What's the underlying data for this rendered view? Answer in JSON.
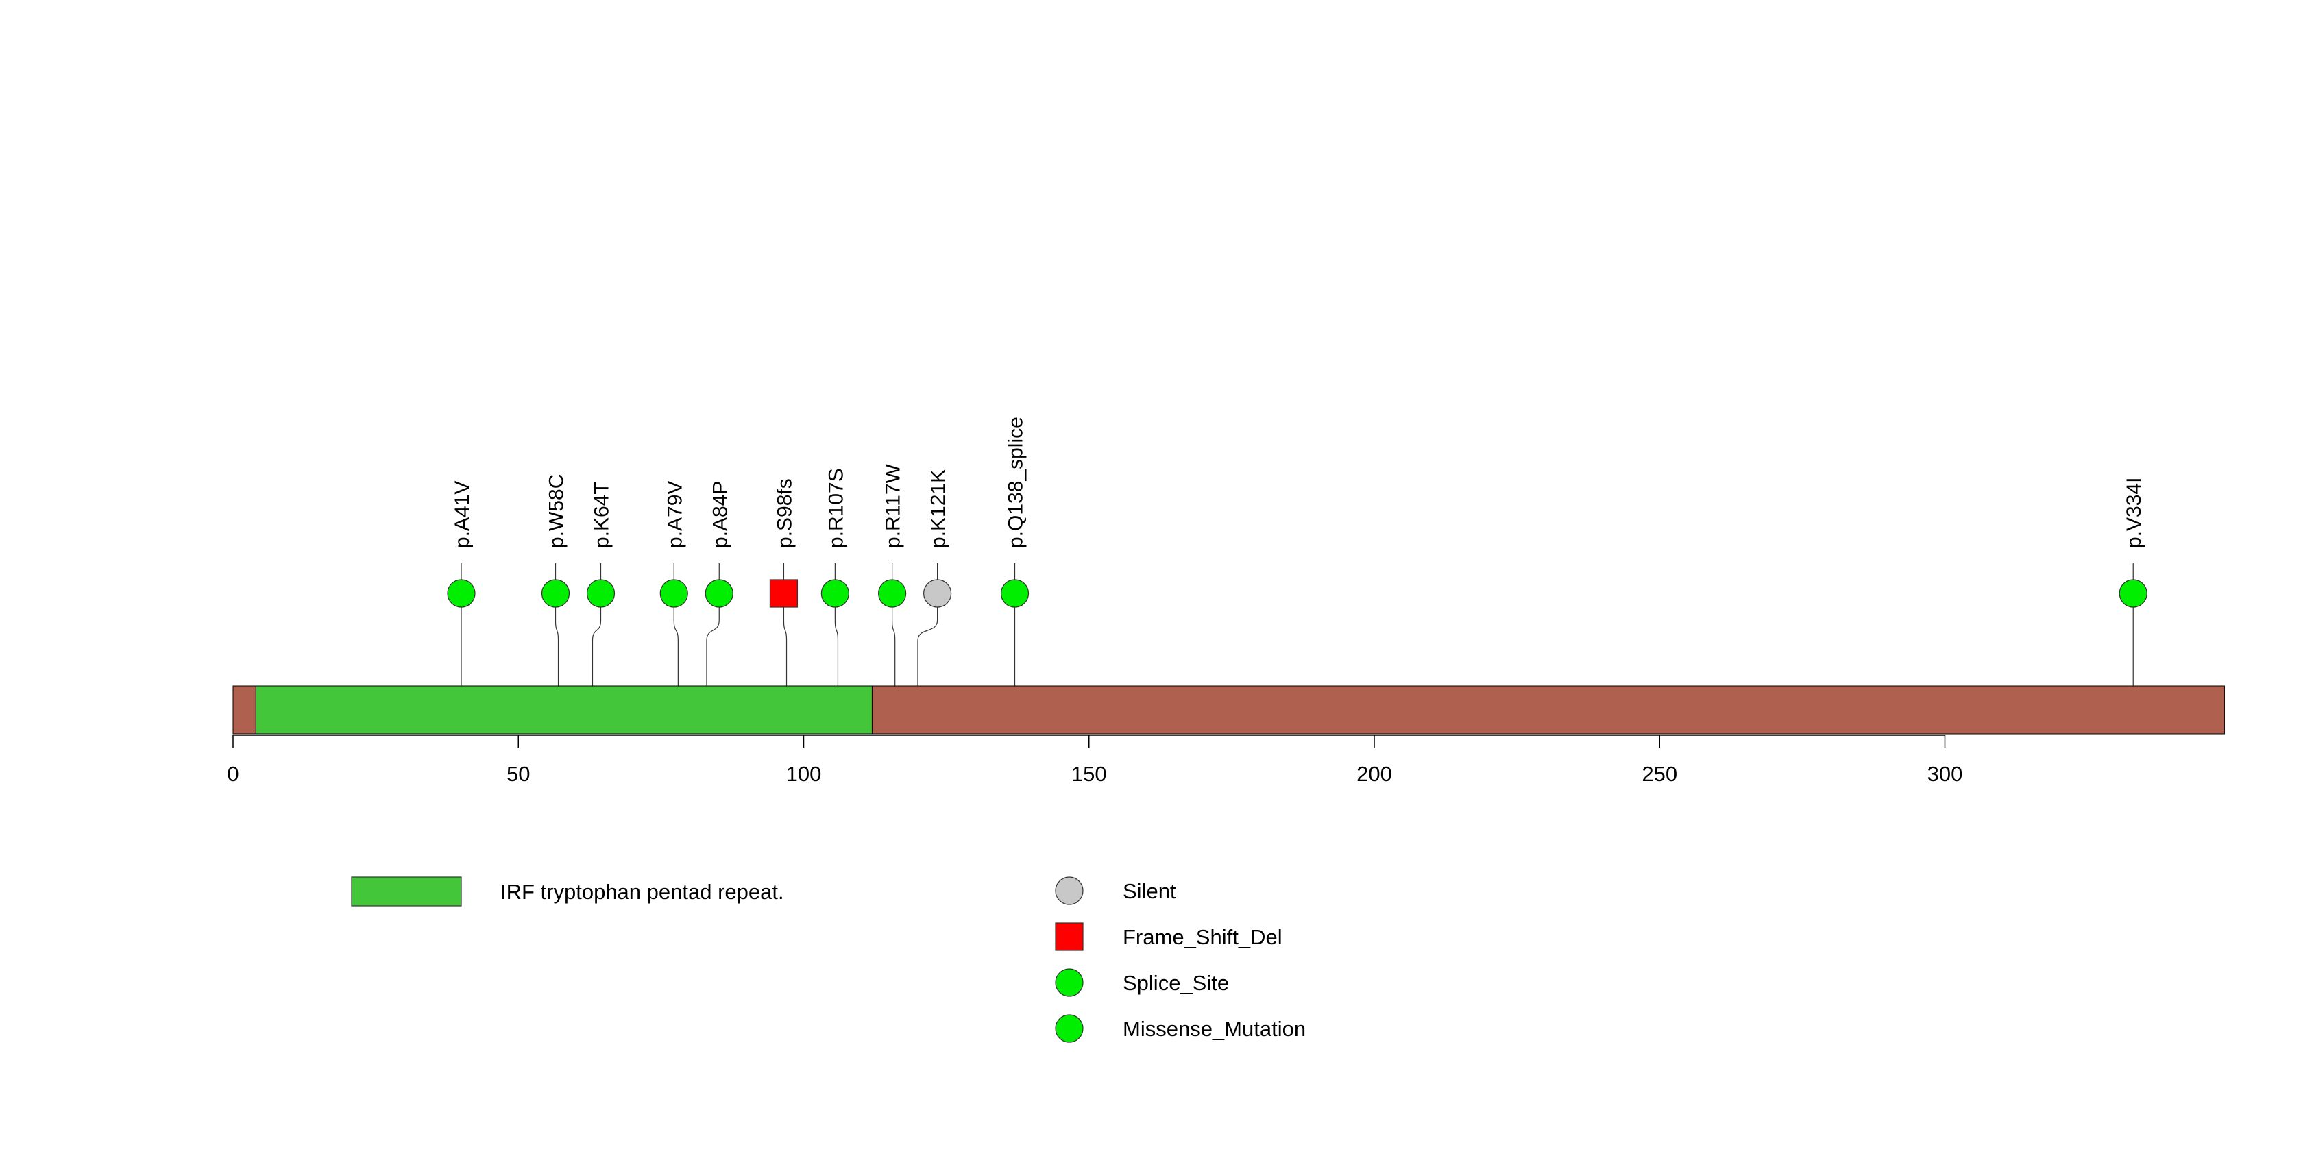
{
  "chart_data": {
    "type": "lollipop",
    "protein_length": 349,
    "axis": {
      "xlim": [
        0,
        349
      ],
      "ticks": [
        0,
        50,
        100,
        150,
        200,
        250,
        300
      ],
      "tick_labels": [
        "0",
        "50",
        "100",
        "150",
        "200",
        "250",
        "300"
      ]
    },
    "backbone_color": "#B0604E",
    "domains": [
      {
        "name": "IRF tryptophan pentad repeat.",
        "start": 4,
        "end": 112,
        "color": "#44C63A"
      }
    ],
    "mutations": [
      {
        "label": "p.A41V",
        "position": 40,
        "type": "Missense_Mutation"
      },
      {
        "label": "p.W58C",
        "position": 57,
        "type": "Missense_Mutation"
      },
      {
        "label": "p.K64T",
        "position": 63,
        "type": "Missense_Mutation"
      },
      {
        "label": "p.A79V",
        "position": 78,
        "type": "Missense_Mutation"
      },
      {
        "label": "p.A84P",
        "position": 83,
        "type": "Missense_Mutation"
      },
      {
        "label": "p.S98fs",
        "position": 97,
        "type": "Frame_Shift_Del"
      },
      {
        "label": "p.R107S",
        "position": 106,
        "type": "Missense_Mutation"
      },
      {
        "label": "p.R117W",
        "position": 116,
        "type": "Missense_Mutation"
      },
      {
        "label": "p.K121K",
        "position": 120,
        "type": "Silent"
      },
      {
        "label": "p.Q138_splice",
        "position": 137,
        "type": "Splice_Site"
      },
      {
        "label": "p.V334I",
        "position": 333,
        "type": "Missense_Mutation"
      }
    ],
    "legend": {
      "domains": [
        {
          "label": "IRF tryptophan pentad repeat.",
          "color": "#44C63A"
        }
      ],
      "mutation_types": [
        {
          "label": "Silent",
          "shape": "circle",
          "color": "#C8C8C8"
        },
        {
          "label": "Frame_Shift_Del",
          "shape": "square",
          "color": "#FF0000"
        },
        {
          "label": "Splice_Site",
          "shape": "circle",
          "color": "#00EE00"
        },
        {
          "label": "Missense_Mutation",
          "shape": "circle",
          "color": "#00EE00"
        }
      ]
    }
  }
}
